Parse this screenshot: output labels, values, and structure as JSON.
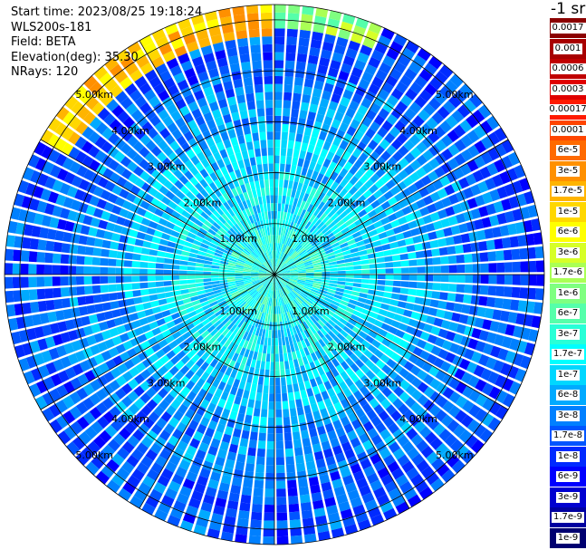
{
  "info": {
    "start_time": "Start time: 2023/08/25 19:18:24",
    "instrument": "WLS200s-181",
    "field": "Field: BETA",
    "elevation": "Elevation(deg): 35.30",
    "nrays": "NRays: 120"
  },
  "colorbar": {
    "unit_label": "-1 sr",
    "levels": [
      {
        "label": "0.0017",
        "color": "#8b0000"
      },
      {
        "label": "0.001",
        "color": "#a80000"
      },
      {
        "label": "0.0006",
        "color": "#c00000"
      },
      {
        "label": "0.0003",
        "color": "#e00000"
      },
      {
        "label": "0.00017",
        "color": "#ff1a00"
      },
      {
        "label": "0.0001",
        "color": "#ff4500"
      },
      {
        "label": "6e-5",
        "color": "#ff6a00"
      },
      {
        "label": "3e-5",
        "color": "#ff9000"
      },
      {
        "label": "1.7e-5",
        "color": "#ffb400"
      },
      {
        "label": "1e-5",
        "color": "#ffd700"
      },
      {
        "label": "6e-6",
        "color": "#ffff00"
      },
      {
        "label": "3e-6",
        "color": "#d7ff28"
      },
      {
        "label": "1.7e-6",
        "color": "#aaff55"
      },
      {
        "label": "1e-6",
        "color": "#7fff80"
      },
      {
        "label": "6e-7",
        "color": "#55ffaa"
      },
      {
        "label": "3e-7",
        "color": "#28ffd7"
      },
      {
        "label": "1.7e-7",
        "color": "#00ffff"
      },
      {
        "label": "1e-7",
        "color": "#00d7ff"
      },
      {
        "label": "6e-8",
        "color": "#00aaff"
      },
      {
        "label": "3e-8",
        "color": "#0080ff"
      },
      {
        "label": "1.7e-8",
        "color": "#0055ff"
      },
      {
        "label": "1e-8",
        "color": "#002aff"
      },
      {
        "label": "6e-9",
        "color": "#0000ff"
      },
      {
        "label": "3e-9",
        "color": "#0000d0"
      },
      {
        "label": "1.7e-9",
        "color": "#0000a0"
      },
      {
        "label": "1e-9",
        "color": "#000070"
      }
    ]
  },
  "chart_data": {
    "type": "heatmap",
    "projection": "polar (PPI)",
    "variable": "BETA",
    "n_rays": 120,
    "max_range_km": 5.3,
    "range_ring_labels_km": [
      "1.00km",
      "2.00km",
      "3.00km",
      "4.00km",
      "5.00km"
    ],
    "grid": true,
    "spokes_deg": 30,
    "color_scale": "log",
    "value_range": [
      1e-09,
      0.0017
    ],
    "features": [
      {
        "region": "near (< 1 km)",
        "typical_value": "3e-7"
      },
      {
        "region": "1-2 km",
        "typical_value": "1.7e-7"
      },
      {
        "region": "2-3 km",
        "typical_value": "1e-7"
      },
      {
        "region": "beyond 3 km",
        "typical_value": "3e-8"
      },
      {
        "region": "north-northwest edge, ~5 km",
        "typical_value": "3e-5"
      }
    ]
  }
}
